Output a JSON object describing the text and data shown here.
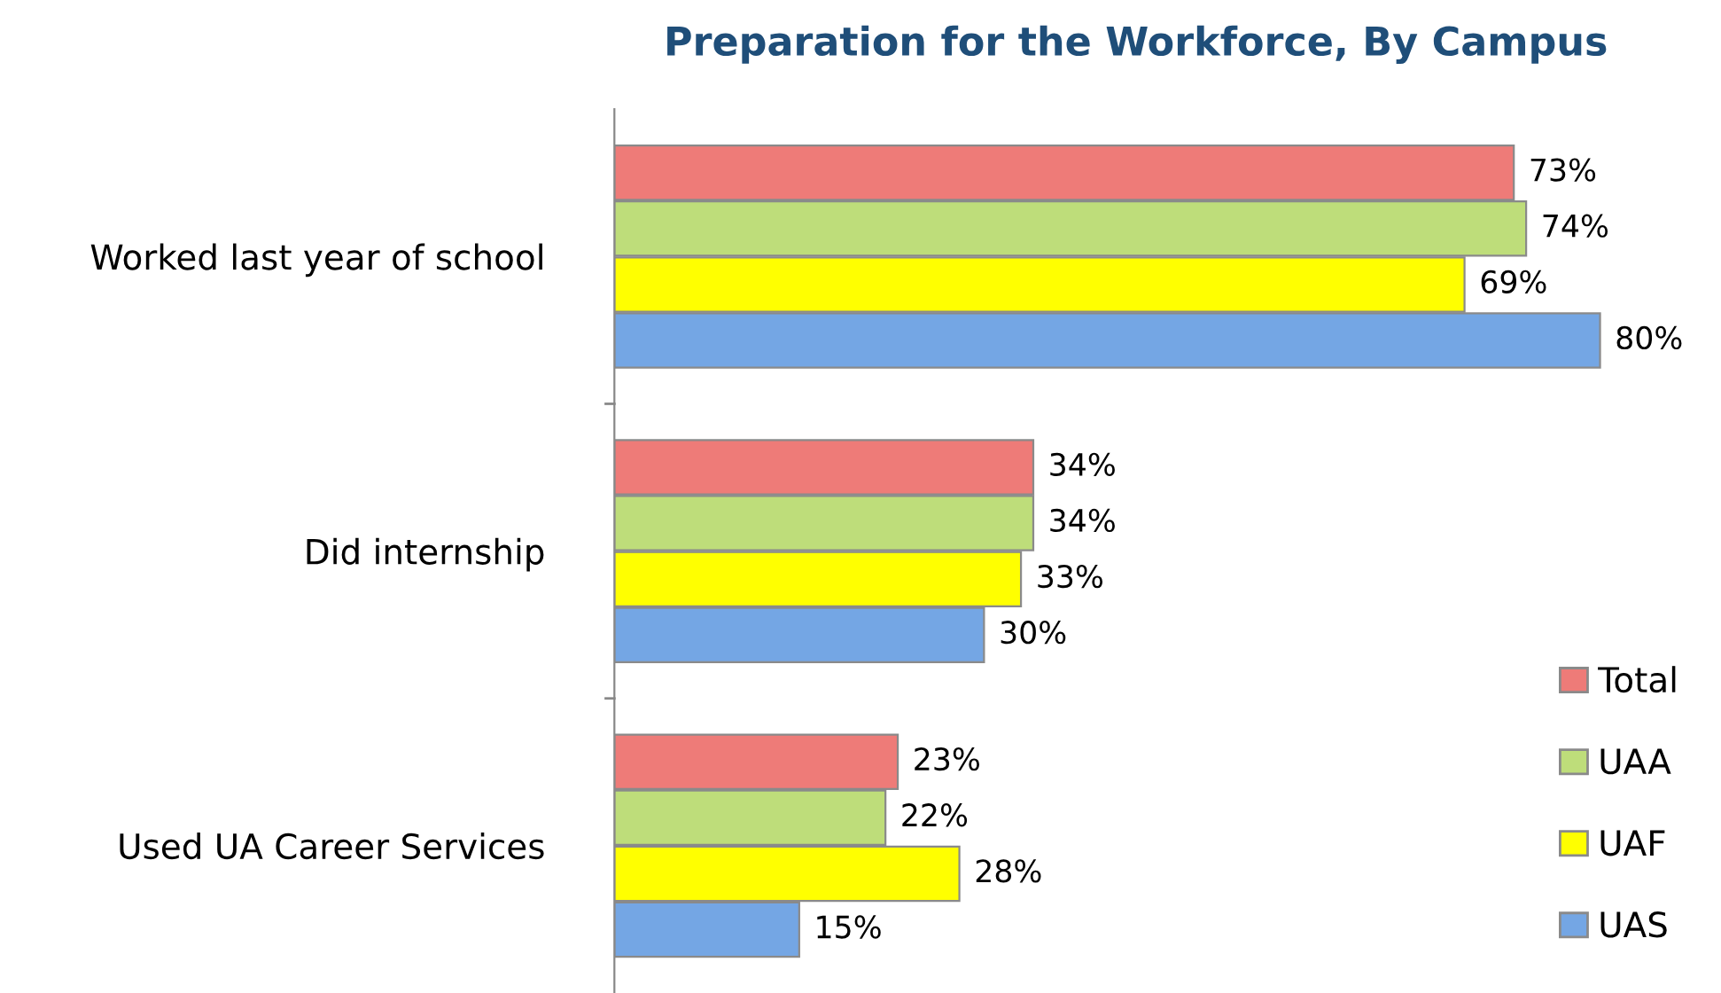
{
  "chart_data": {
    "type": "bar",
    "orientation": "horizontal",
    "title": "Preparation for the Workforce, By Campus",
    "categories": [
      "Worked last year of school",
      "Did internship",
      "Used UA Career Services"
    ],
    "series": [
      {
        "name": "Total",
        "color": "#ee7b78",
        "values": [
          73,
          34,
          23
        ],
        "value_labels": [
          "73%",
          "34%",
          "23%"
        ]
      },
      {
        "name": "UAA",
        "color": "#bedd7a",
        "values": [
          74,
          34,
          22
        ],
        "value_labels": [
          "74%",
          "34%",
          "22%"
        ]
      },
      {
        "name": "UAF",
        "color": "#ffff00",
        "values": [
          69,
          33,
          28
        ],
        "value_labels": [
          "69%",
          "33%",
          "28%"
        ]
      },
      {
        "name": "UAS",
        "color": "#74a6e4",
        "values": [
          80,
          30,
          15
        ],
        "value_labels": [
          "80%",
          "30%",
          "15%"
        ]
      }
    ],
    "legend": "right",
    "grid": false
  }
}
